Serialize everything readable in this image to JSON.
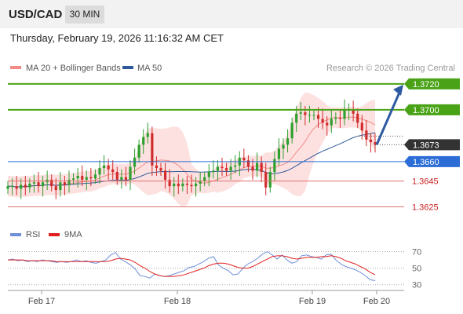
{
  "header": {
    "symbol": "USD/CAD",
    "timeframe": "30 MIN",
    "datetime": "Thursday, February 19, 2026 11:16:32 AM CET"
  },
  "legend": {
    "items": [
      {
        "label": "MA 20 + Bollinger Bands",
        "color": "#f28b86"
      },
      {
        "label": "MA 50",
        "color": "#2e5a9a"
      }
    ],
    "credit": "Research © 2026 Trading Central"
  },
  "chart_data": [
    {
      "type": "candlestick",
      "title": "",
      "x_ticks": [
        "Feb 17",
        "Feb 18",
        "Feb 19",
        "Feb 20"
      ],
      "ylim": [
        1.3612,
        1.3726
      ],
      "current_price": 1.3673,
      "levels": [
        {
          "value": 1.372,
          "label": "1.3720",
          "kind": "resistance",
          "color": "#4aa317"
        },
        {
          "value": 1.37,
          "label": "1.3700",
          "kind": "resistance",
          "color": "#4aa317"
        },
        {
          "value": 1.3673,
          "label": "1.3673",
          "kind": "last",
          "color": "#333333"
        },
        {
          "value": 1.366,
          "label": "1.3660",
          "kind": "pivot",
          "color": "#2b6cd6"
        },
        {
          "value": 1.3645,
          "label": "1.3645",
          "kind": "support",
          "color": "#cc2222"
        },
        {
          "value": 1.3625,
          "label": "1.3625",
          "kind": "support",
          "color": "#cc2222"
        }
      ],
      "forecast": {
        "from": 1.3673,
        "to": 1.3717,
        "direction": "up",
        "color": "#2d5aa0"
      },
      "colors": {
        "up": "#2ea02e",
        "down": "#d22b2b",
        "band": "#fcd4d4",
        "ma20": "#f28b86",
        "ma50": "#2e5a9a"
      },
      "series": [
        {
          "name": "Price",
          "values": [
            1.3641,
            1.3641,
            1.3639,
            1.3642,
            1.364,
            1.3643,
            1.3644,
            1.3641,
            1.3644,
            1.3646,
            1.3641,
            1.3638,
            1.3644,
            1.3642,
            1.3646,
            1.3647,
            1.3649,
            1.3646,
            1.3648,
            1.3647,
            1.365,
            1.3655,
            1.3657,
            1.3654,
            1.3652,
            1.3646,
            1.3648,
            1.3646,
            1.3656,
            1.3663,
            1.3673,
            1.3679,
            1.3682,
            1.3657,
            1.3655,
            1.3653,
            1.3646,
            1.3641,
            1.3643,
            1.3641,
            1.3643,
            1.3642,
            1.3641,
            1.3643,
            1.3645,
            1.3648,
            1.3652,
            1.3653,
            1.3656,
            1.3655,
            1.3653,
            1.3656,
            1.3657,
            1.3663,
            1.3661,
            1.3656,
            1.3653,
            1.3659,
            1.3652,
            1.364,
            1.3652,
            1.3662,
            1.367,
            1.3673,
            1.3678,
            1.369,
            1.3697,
            1.3698,
            1.3696,
            1.3696,
            1.3696,
            1.3693,
            1.369,
            1.3688,
            1.3693,
            1.3694,
            1.3693,
            1.37,
            1.37,
            1.3697,
            1.369,
            1.3684,
            1.3677,
            1.3675,
            1.3673
          ]
        },
        {
          "name": "RSI",
          "values": [
            60,
            61,
            59,
            60,
            58,
            59,
            58,
            60,
            59,
            58,
            57,
            58,
            57,
            58,
            60,
            58,
            59,
            57,
            56,
            58,
            60,
            66,
            69,
            61,
            58,
            54,
            49,
            41,
            40,
            38,
            43,
            41,
            40,
            41,
            43,
            45,
            47,
            51,
            52,
            55,
            58,
            62,
            64,
            54,
            50,
            47,
            42,
            43,
            50,
            55,
            58,
            62,
            67,
            70,
            66,
            61,
            66,
            60,
            56,
            58,
            65,
            66,
            64,
            63,
            61,
            66,
            67,
            60,
            55,
            52,
            50,
            48,
            45,
            41,
            36,
            35
          ]
        },
        {
          "name": "9MA",
          "values": [
            60,
            60,
            60,
            60,
            59,
            59,
            59,
            59,
            59,
            59,
            58,
            58,
            58,
            58,
            58,
            58,
            58,
            58,
            58,
            58,
            58,
            59,
            61,
            62,
            61,
            60,
            57,
            53,
            50,
            46,
            43,
            41,
            40,
            40,
            40,
            41,
            42,
            44,
            46,
            48,
            50,
            53,
            55,
            56,
            56,
            55,
            53,
            51,
            50,
            50,
            52,
            55,
            58,
            61,
            64,
            65,
            65,
            64,
            62,
            61,
            62,
            63,
            63,
            63,
            64,
            64,
            65,
            64,
            62,
            59,
            57,
            55,
            52,
            49,
            45,
            42
          ]
        }
      ]
    },
    {
      "type": "line",
      "title": "",
      "legend": [
        {
          "label": "RSI",
          "color": "#6f8fd8"
        },
        {
          "label": "9MA",
          "color": "#e02020"
        }
      ],
      "ylim": [
        25,
        80
      ],
      "y_ticks": [
        "70",
        "50",
        "30"
      ],
      "y_tick_values": [
        70,
        50,
        30
      ]
    }
  ]
}
